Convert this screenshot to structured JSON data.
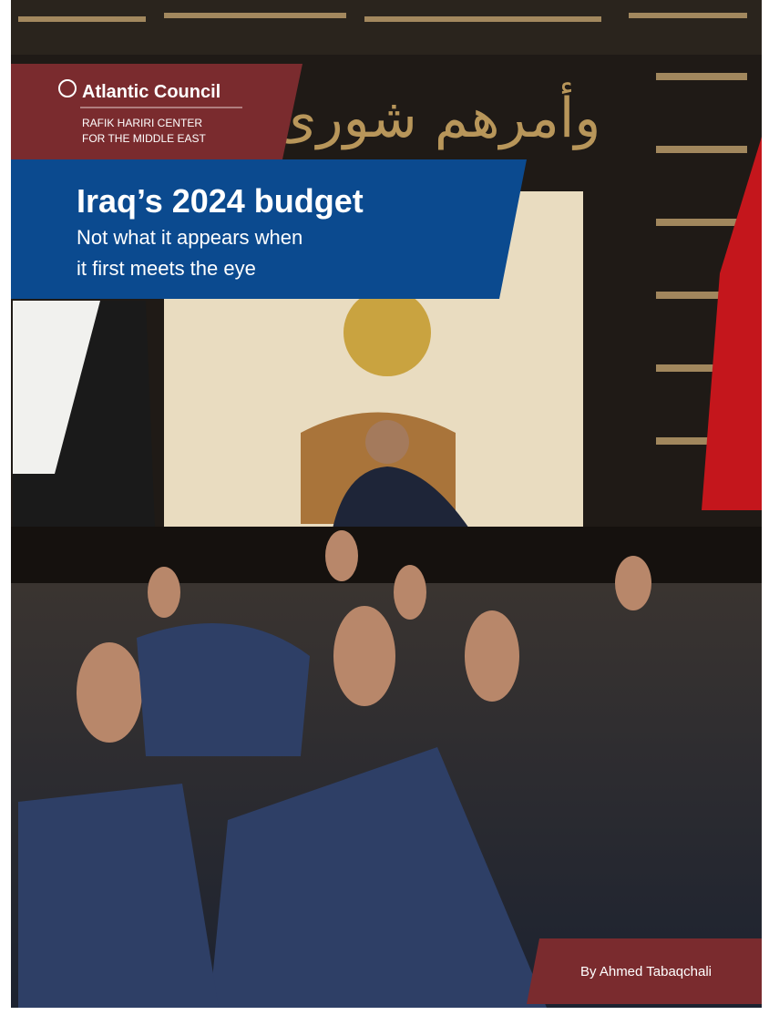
{
  "header": {
    "brand": "Atlantic Council",
    "center_line1": "RAFIK HARIRI CENTER",
    "center_line2": "FOR THE MIDDLE EAST"
  },
  "title": {
    "main": "Iraq’s 2024 budget",
    "subtitle_line1": "Not what it appears when",
    "subtitle_line2": "it first meets the eye"
  },
  "photo": {
    "inscription": "وأمرهم شورى"
  },
  "byline": "By Ahmed Tabaqchali"
}
